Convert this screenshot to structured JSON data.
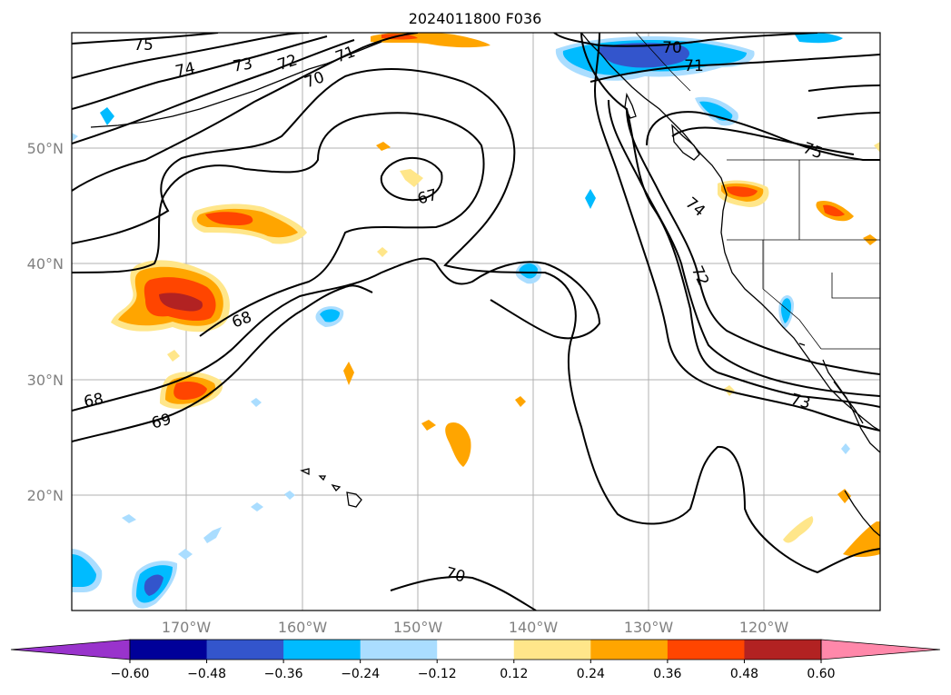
{
  "title": "2024011800 F036",
  "lat_labels": [
    "50°N",
    "40°N",
    "30°N",
    "20°N"
  ],
  "lon_labels": [
    "170°W",
    "160°W",
    "150°W",
    "140°W",
    "130°W",
    "120°W"
  ],
  "colorbar": {
    "ticks": [
      "−0.60",
      "−0.48",
      "−0.36",
      "−0.24",
      "−0.12",
      "0.12",
      "0.24",
      "0.36",
      "0.48",
      "0.60"
    ],
    "colors": [
      "#9933cc",
      "#000099",
      "#3355cc",
      "#00bbff",
      "#aaddff",
      "#ffffff",
      "#ffe68a",
      "#ffa500",
      "#ff4500",
      "#b22222",
      "#ff88aa"
    ]
  },
  "contour_labels": [
    "75",
    "74",
    "73",
    "72",
    "71",
    "70",
    "70",
    "71",
    "67",
    "68",
    "68",
    "69",
    "74",
    "72",
    "75",
    "73",
    "70"
  ],
  "chart_data": {
    "type": "heatmap",
    "title": "2024011800 F036",
    "contour_levels": [
      67,
      68,
      69,
      70,
      71,
      72,
      73,
      74,
      75
    ],
    "shading_levels": [
      -0.6,
      -0.48,
      -0.36,
      -0.24,
      -0.12,
      0.12,
      0.24,
      0.36,
      0.48,
      0.6
    ],
    "lat_range": [
      "10°N",
      "60°N"
    ],
    "lon_range": [
      "180°W",
      "110°W"
    ],
    "grid": true
  }
}
